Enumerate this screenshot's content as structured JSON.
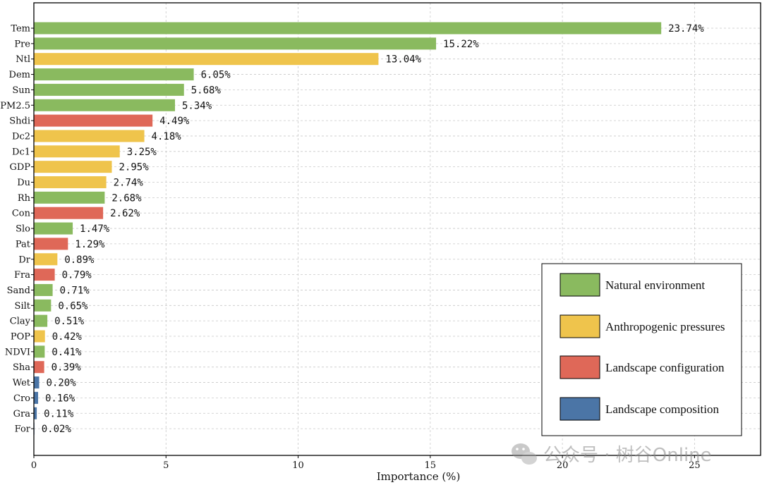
{
  "chart_data": {
    "type": "bar",
    "orientation": "horizontal",
    "xlabel": "Importance (%)",
    "ylabel": "",
    "xlim": [
      0,
      27.5
    ],
    "xticks": [
      0,
      5,
      10,
      15,
      20,
      25
    ],
    "grid": true,
    "legend_position": "bottom-right",
    "groups": [
      {
        "name": "Natural environment",
        "color": "#8aba5f"
      },
      {
        "name": "Anthropogenic pressures",
        "color": "#efc44c"
      },
      {
        "name": "Landscape configuration",
        "color": "#df6858"
      },
      {
        "name": "Landscape composition",
        "color": "#4b75a6"
      }
    ],
    "categories": [
      "Tem",
      "Pre",
      "Ntl",
      "Dem",
      "Sun",
      "PM2.5",
      "Shdi",
      "Dc2",
      "Dc1",
      "GDP",
      "Du",
      "Rh",
      "Con",
      "Slo",
      "Pat",
      "Dr",
      "Fra",
      "Sand",
      "Silt",
      "Clay",
      "POP",
      "NDVI",
      "Sha",
      "Wet",
      "Cro",
      "Gra",
      "For"
    ],
    "values": [
      23.74,
      15.22,
      13.04,
      6.05,
      5.68,
      5.34,
      4.49,
      4.18,
      3.25,
      2.95,
      2.74,
      2.68,
      2.62,
      1.47,
      1.29,
      0.89,
      0.79,
      0.71,
      0.65,
      0.51,
      0.42,
      0.41,
      0.39,
      0.2,
      0.16,
      0.11,
      0.02
    ],
    "value_labels": [
      "23.74%",
      "15.22%",
      "13.04%",
      "6.05%",
      "5.68%",
      "5.34%",
      "4.49%",
      "4.18%",
      "3.25%",
      "2.95%",
      "2.74%",
      "2.68%",
      "2.62%",
      "1.47%",
      "1.29%",
      "0.89%",
      "0.79%",
      "0.71%",
      "0.65%",
      "0.51%",
      "0.42%",
      "0.41%",
      "0.39%",
      "0.20%",
      "0.16%",
      "0.11%",
      "0.02%"
    ],
    "group_index": [
      0,
      0,
      1,
      0,
      0,
      0,
      2,
      1,
      1,
      1,
      1,
      0,
      2,
      0,
      2,
      1,
      2,
      0,
      0,
      0,
      1,
      0,
      2,
      3,
      3,
      3,
      3
    ]
  },
  "watermark": {
    "text": "公众号 · 树谷Online",
    "icon": "wechat-icon"
  }
}
